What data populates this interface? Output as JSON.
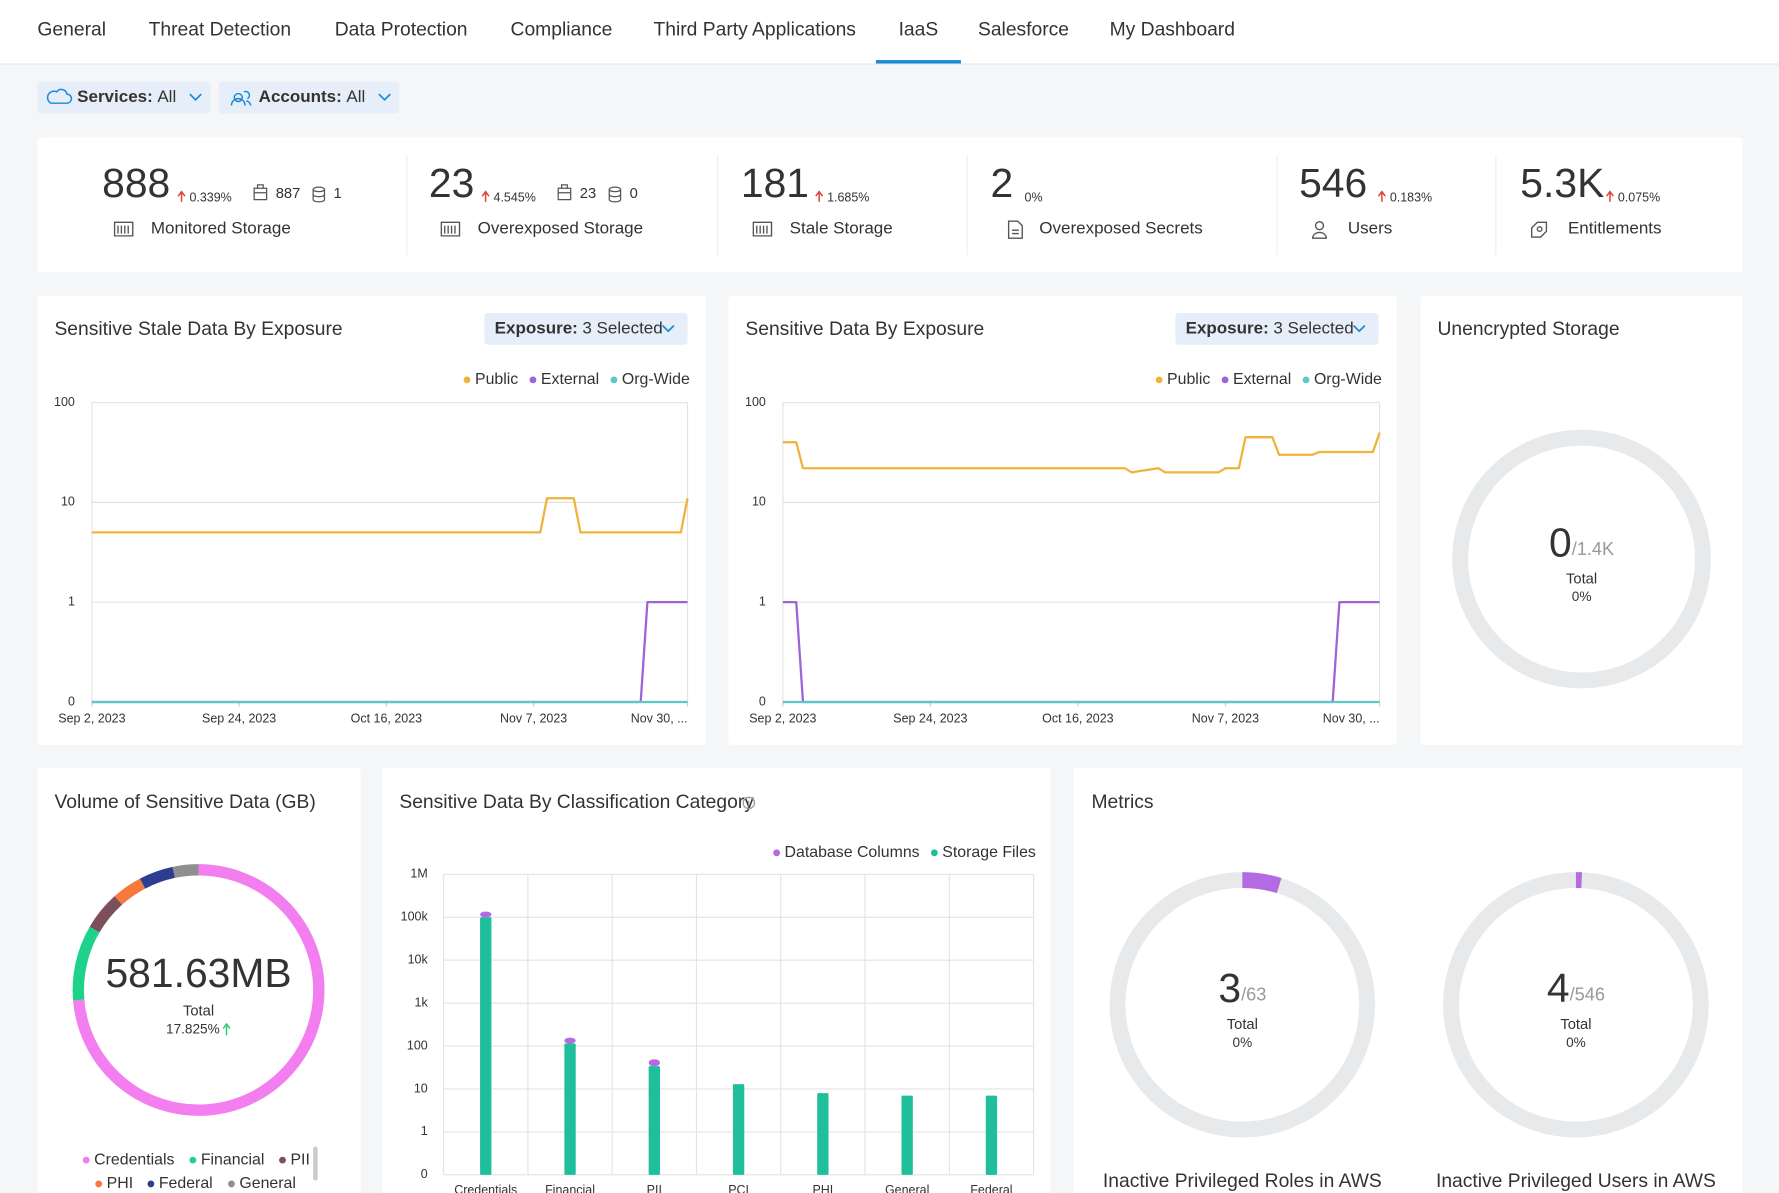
{
  "tabs": [
    "General",
    "Threat Detection",
    "Data Protection",
    "Compliance",
    "Third Party Applications",
    "IaaS",
    "Salesforce",
    "My Dashboard"
  ],
  "active_tab": 5,
  "filters": [
    {
      "name": "Services:",
      "value": "All"
    },
    {
      "name": "Accounts:",
      "value": "All"
    }
  ],
  "stats": [
    {
      "value": "888",
      "change": "0.339%",
      "trend": "up",
      "label": "Monitored Storage",
      "buckets": "887",
      "databases": "1"
    },
    {
      "value": "23",
      "change": "4.545%",
      "trend": "up",
      "label": "Overexposed Storage",
      "buckets": "23",
      "databases": "0"
    },
    {
      "value": "181",
      "change": "1.685%",
      "trend": "up",
      "label": "Stale Storage"
    },
    {
      "value": "2",
      "change": "0%",
      "trend": "none",
      "label": "Overexposed Secrets"
    },
    {
      "value": "546",
      "change": "0.183%",
      "trend": "up",
      "label": "Users"
    },
    {
      "value": "5.3K",
      "change": "0.075%",
      "trend": "up",
      "label": "Entitlements"
    }
  ],
  "charts": [
    {
      "type": "line",
      "title": "Sensitive Stale Data By Exposure",
      "dropdown": {
        "name": "Exposure:",
        "value": "3 Selected"
      },
      "x": [
        "2023-09-02",
        "2023-11-08",
        "2023-11-09",
        "2023-11-13",
        "2023-11-14",
        "2023-11-23",
        "2023-11-24",
        "2023-11-29",
        "2023-11-30"
      ],
      "series": [
        {
          "name": "Public",
          "color": "#f0b23b",
          "values": [
            5,
            5,
            11,
            11,
            5,
            5,
            5,
            5,
            11
          ]
        },
        {
          "name": "External",
          "color": "#9c64d6",
          "values": [
            0,
            0,
            0,
            0,
            0,
            0,
            1,
            1,
            1
          ]
        },
        {
          "name": "Org-Wide",
          "color": "#5bc8c8",
          "values": [
            0,
            0,
            0,
            0,
            0,
            0,
            0,
            0,
            0
          ]
        }
      ],
      "xlim": [
        "2023-09-02",
        "2023-11-30"
      ],
      "xticks": [
        {
          "value": "2023-09-02",
          "label": "Sep 2, 2023"
        },
        {
          "value": "2023-09-24",
          "label": "Sep 24, 2023"
        },
        {
          "value": "2023-10-16",
          "label": "Oct 16, 2023"
        },
        {
          "value": "2023-11-07",
          "label": "Nov 7, 2023"
        },
        {
          "value": "2023-11-30",
          "label": "Nov 30, ..."
        }
      ],
      "ylim": [
        0,
        100
      ],
      "yticks": [
        0,
        1,
        10,
        100
      ],
      "yscale": "symlog",
      "grid": true,
      "legend": "top-right"
    },
    {
      "type": "line",
      "title": "Sensitive Data By Exposure",
      "dropdown": {
        "name": "Exposure:",
        "value": "3 Selected"
      },
      "x": [
        "2023-09-02",
        "2023-09-04",
        "2023-09-05",
        "2023-10-23",
        "2023-10-24",
        "2023-10-28",
        "2023-10-29",
        "2023-11-06",
        "2023-11-07",
        "2023-11-09",
        "2023-11-10",
        "2023-11-14",
        "2023-11-15",
        "2023-11-20",
        "2023-11-21",
        "2023-11-23",
        "2023-11-24",
        "2023-11-29",
        "2023-11-30"
      ],
      "series": [
        {
          "name": "Public",
          "color": "#f0b23b",
          "values": [
            40,
            40,
            22,
            22,
            20,
            22,
            20,
            20,
            22,
            22,
            45,
            45,
            30,
            30,
            32,
            32,
            32,
            32,
            50
          ]
        },
        {
          "name": "External",
          "color": "#9c64d6",
          "values": [
            1,
            1,
            0,
            0,
            0,
            0,
            0,
            0,
            0,
            0,
            0,
            0,
            0,
            0,
            0,
            0,
            1,
            1,
            1
          ]
        },
        {
          "name": "Org-Wide",
          "color": "#5bc8c8",
          "values": [
            0,
            0,
            0,
            0,
            0,
            0,
            0,
            0,
            0,
            0,
            0,
            0,
            0,
            0,
            0,
            0,
            0,
            0,
            0
          ]
        }
      ],
      "xlim": [
        "2023-09-02",
        "2023-11-30"
      ],
      "xticks": [
        {
          "value": "2023-09-02",
          "label": "Sep 2, 2023"
        },
        {
          "value": "2023-09-24",
          "label": "Sep 24, 2023"
        },
        {
          "value": "2023-10-16",
          "label": "Oct 16, 2023"
        },
        {
          "value": "2023-11-07",
          "label": "Nov 7, 2023"
        },
        {
          "value": "2023-11-30",
          "label": "Nov 30, ..."
        }
      ],
      "ylim": [
        0,
        100
      ],
      "yticks": [
        0,
        1,
        10,
        100
      ],
      "yscale": "symlog",
      "grid": true,
      "legend": "top-right"
    },
    {
      "type": "gauge",
      "title": "Unencrypted Storage",
      "value": 0,
      "total": 1400,
      "total_label": "/1.4K",
      "caption": "Total",
      "percent": "0%",
      "color": "#b36ae2"
    },
    {
      "type": "donut",
      "title": "Volume of Sensitive Data (GB)",
      "center": "581.63MB",
      "caption": "Total",
      "change": "17.825%",
      "categories": [
        "Credentials",
        "Financial",
        "PII",
        "PHI",
        "Federal",
        "General"
      ],
      "values": [
        73.6,
        9.7,
        5,
        3.9,
        4.4,
        3.3
      ],
      "colors": [
        "#f27ef0",
        "#1fd28a",
        "#7d4f5a",
        "#f5793b",
        "#2c3e8f",
        "#8f8f8f"
      ]
    },
    {
      "type": "bar",
      "title": "Sensitive Data By Classification Category",
      "stacked": true,
      "categories": [
        "Credentials",
        "Financial",
        "PII",
        "PCI",
        "PHI",
        "General",
        "Federal"
      ],
      "series": [
        {
          "name": "Database Columns",
          "color": "#b36ae2",
          "values": [
            35000,
            41,
            15,
            0,
            0,
            0,
            0
          ]
        },
        {
          "name": "Storage Files",
          "color": "#1fbf9b",
          "values": [
            100000,
            115,
            34,
            13,
            8,
            7,
            7
          ]
        }
      ],
      "ylim": [
        0,
        1000000
      ],
      "yticks": [
        0,
        1,
        10,
        100,
        {
          "value": 1000,
          "label": "1k"
        },
        {
          "value": 10000,
          "label": "10k"
        },
        {
          "value": 100000,
          "label": "100k"
        },
        {
          "value": 1000000,
          "label": "1M"
        }
      ],
      "yscale": "symlog",
      "grid": true,
      "legend": "top-right"
    },
    {
      "type": "metrics",
      "title": "Metrics",
      "gauges": [
        {
          "value": 3,
          "total": 63,
          "total_label": "/63",
          "caption": "Total",
          "percent": "0%",
          "label": "Inactive Privileged Roles in AWS",
          "color": "#b36ae2"
        },
        {
          "value": 4,
          "total": 546,
          "total_label": "/546",
          "caption": "Total",
          "percent": "0%",
          "label": "Inactive Privileged Users in AWS",
          "color": "#b36ae2"
        }
      ]
    }
  ]
}
